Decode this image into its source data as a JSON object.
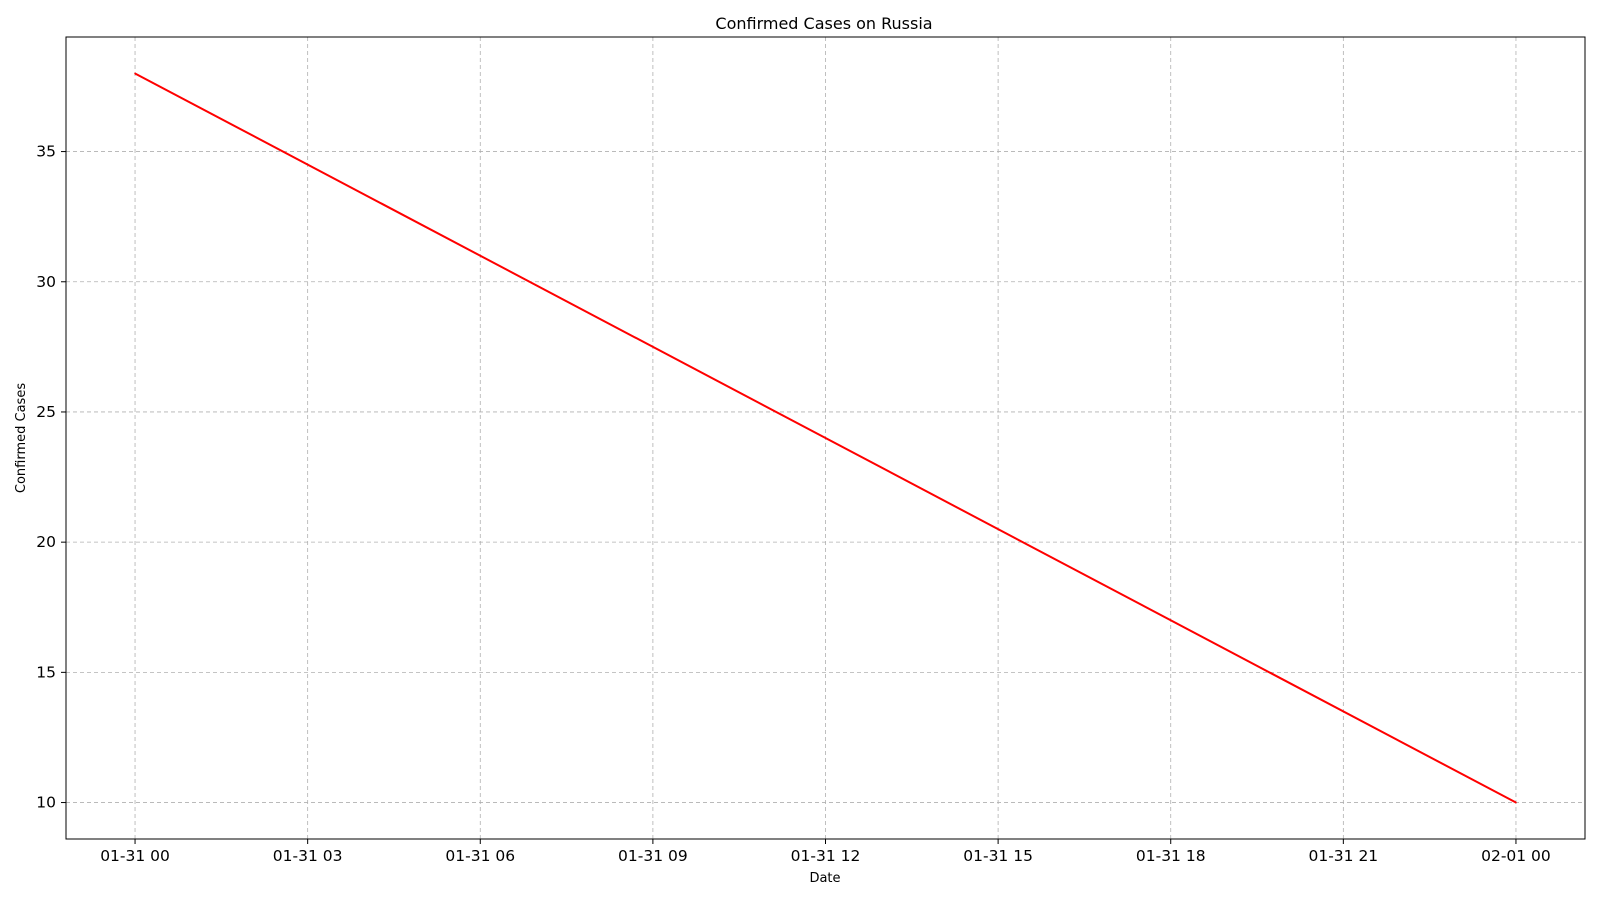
{
  "chart_data": {
    "type": "line",
    "title": "Confirmed Cases on Russia",
    "xlabel": "Date",
    "ylabel": "Confirmed Cases",
    "x": [
      "01-31 00",
      "02-01 00"
    ],
    "series": [
      {
        "values": [
          38,
          10
        ],
        "color": "#ff0000"
      }
    ],
    "x_ticks": [
      "01-31 00",
      "01-31 03",
      "01-31 06",
      "01-31 09",
      "01-31 12",
      "01-31 15",
      "01-31 18",
      "01-31 21",
      "02-01 00"
    ],
    "x_tick_hours": [
      0,
      3,
      6,
      9,
      12,
      15,
      18,
      21,
      24
    ],
    "x_point_hours": [
      0,
      24
    ],
    "y_ticks": [
      10,
      15,
      20,
      25,
      30,
      35
    ],
    "ylim": [
      8.6,
      39.4
    ],
    "xlim_hours": [
      -1.2,
      25.2
    ],
    "grid": true,
    "grid_color": "#b0b0b0"
  }
}
